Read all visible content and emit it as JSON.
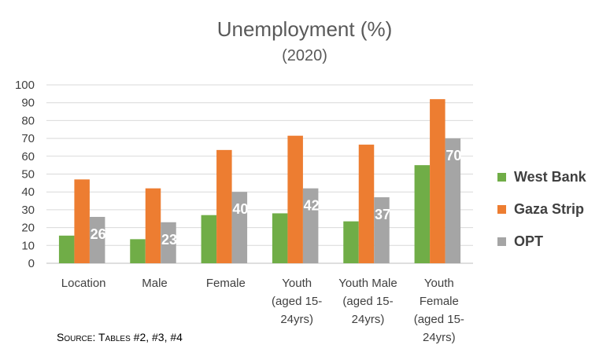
{
  "chart_data": {
    "type": "bar",
    "title": "Unemployment (%)",
    "subtitle": "(2020)",
    "categories": [
      [
        "Location"
      ],
      [
        "Male"
      ],
      [
        "Female"
      ],
      [
        "Youth",
        "(aged 15-",
        "24yrs)"
      ],
      [
        "Youth Male",
        "(aged 15-",
        "24yrs)"
      ],
      [
        "Youth",
        "Female",
        "(aged 15-",
        "24yrs)"
      ]
    ],
    "series": [
      {
        "name": "West Bank",
        "color": "#70ad47",
        "values": [
          15.5,
          13.5,
          27,
          28,
          23.5,
          55
        ],
        "labels": [
          null,
          null,
          null,
          null,
          null,
          null
        ]
      },
      {
        "name": "Gaza Strip",
        "color": "#ed7d31",
        "values": [
          47,
          42,
          63.5,
          71.5,
          66.5,
          92
        ],
        "labels": [
          null,
          null,
          null,
          null,
          null,
          null
        ]
      },
      {
        "name": "OPT",
        "color": "#a5a5a5",
        "values": [
          26,
          23,
          40,
          42,
          37,
          70
        ],
        "labels": [
          "26",
          "23",
          "40",
          "42",
          "37",
          "70"
        ]
      }
    ],
    "ylim": [
      0,
      100
    ],
    "yticks": [
      0,
      10,
      20,
      30,
      40,
      50,
      60,
      70,
      80,
      90,
      100
    ],
    "grid": true,
    "legend_position": "right"
  },
  "source": "Source: Tables #2, #3, #4"
}
